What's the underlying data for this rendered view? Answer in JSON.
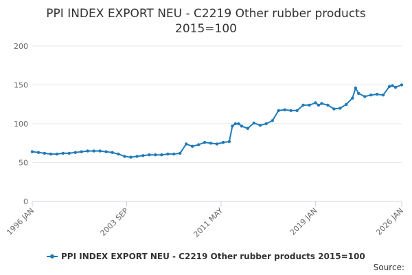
{
  "title_line1": "PPI INDEX EXPORT NEU - C2219 Other rubber products",
  "title_line2": "2015=100",
  "source_label": "Source:",
  "colors": {
    "series": "#1f7ab8",
    "grid": "#e6e6e6",
    "axis": "#ccd6eb"
  },
  "chart_data": {
    "type": "line",
    "title": "PPI INDEX EXPORT NEU - C2219 Other rubber products 2015=100",
    "xlabel": "",
    "ylabel": "",
    "ylim": [
      0,
      200
    ],
    "y_ticks": [
      0,
      50,
      100,
      150,
      200
    ],
    "x_ticks": [
      "1996 JAN",
      "2003 SEP",
      "2011 MAY",
      "2019 JAN",
      "2026 JAN"
    ],
    "x_range": [
      "1996-01",
      "2026-01"
    ],
    "grid": true,
    "legend": "bottom-center",
    "series": [
      {
        "name": "PPI INDEX EXPORT NEU - C2219 Other rubber products 2015=100",
        "x": [
          "1996-01",
          "1996-07",
          "1997-01",
          "1997-07",
          "1998-01",
          "1998-07",
          "1999-01",
          "1999-07",
          "2000-01",
          "2000-07",
          "2001-01",
          "2001-07",
          "2002-01",
          "2002-07",
          "2003-01",
          "2003-07",
          "2004-01",
          "2004-07",
          "2005-01",
          "2005-07",
          "2006-01",
          "2006-07",
          "2007-01",
          "2007-07",
          "2008-01",
          "2008-07",
          "2009-01",
          "2009-07",
          "2010-01",
          "2010-07",
          "2011-01",
          "2011-07",
          "2012-01",
          "2012-04",
          "2012-07",
          "2012-10",
          "2013-01",
          "2013-07",
          "2014-01",
          "2014-07",
          "2015-01",
          "2015-07",
          "2016-01",
          "2016-07",
          "2017-01",
          "2017-07",
          "2018-01",
          "2018-07",
          "2019-01",
          "2019-04",
          "2019-07",
          "2020-01",
          "2020-07",
          "2021-01",
          "2021-07",
          "2022-01",
          "2022-04",
          "2022-07",
          "2023-01",
          "2023-07",
          "2024-01",
          "2024-07",
          "2025-01",
          "2025-04",
          "2025-07",
          "2026-01"
        ],
        "values": [
          64,
          63,
          62,
          61,
          61,
          62,
          62,
          63,
          64,
          65,
          65,
          65,
          64,
          63,
          61,
          58,
          57,
          58,
          59,
          60,
          60,
          60,
          61,
          61,
          62,
          74,
          71,
          73,
          76,
          75,
          74,
          76,
          77,
          97,
          100,
          100,
          97,
          94,
          101,
          98,
          100,
          104,
          117,
          118,
          117,
          117,
          124,
          124,
          127,
          124,
          126,
          124,
          119,
          120,
          125,
          133,
          146,
          139,
          135,
          137,
          138,
          137,
          148,
          149,
          147,
          150
        ]
      }
    ]
  }
}
